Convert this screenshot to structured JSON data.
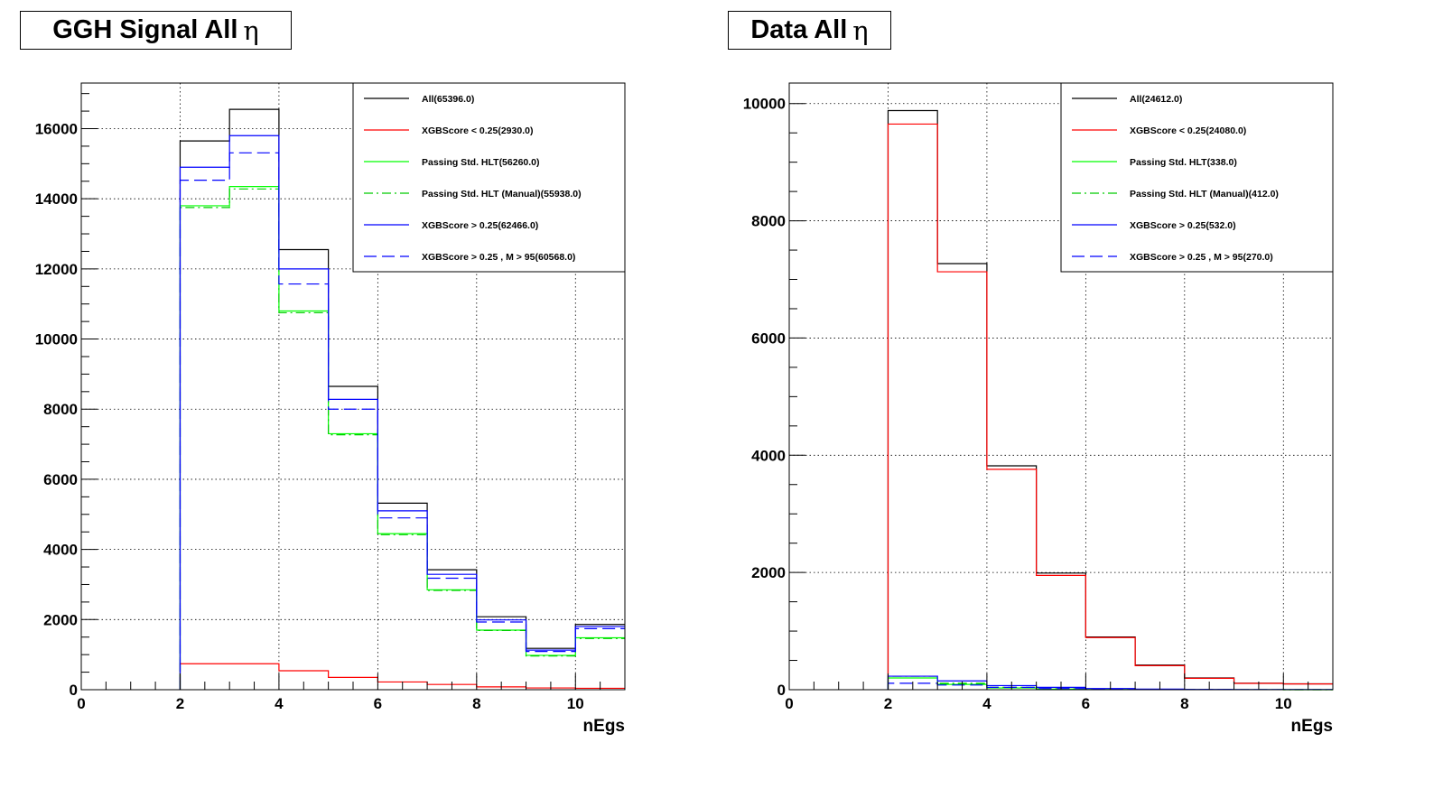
{
  "chart_data": [
    {
      "type": "histogram",
      "title": "GGH Signal All",
      "title_symbol": "η",
      "xlabel": "nEgs",
      "ylabel": "",
      "xlim": [
        0,
        11
      ],
      "ylim": [
        0,
        17300
      ],
      "xticks": [
        0,
        2,
        4,
        6,
        8,
        10
      ],
      "yticks": [
        0,
        2000,
        4000,
        6000,
        8000,
        10000,
        12000,
        14000,
        16000
      ],
      "grid": true,
      "legend_position": "top-right",
      "bin_edges": [
        2,
        3,
        4,
        5,
        6,
        7,
        8,
        9,
        10,
        11
      ],
      "series": [
        {
          "name": "All(65396.0)",
          "color": "#000000",
          "style": "solid",
          "values": [
            15650,
            16550,
            12550,
            8650,
            5320,
            3420,
            2080,
            1180,
            1860
          ]
        },
        {
          "name": "XGBScore < 0.25(2930.0)",
          "color": "#ff0000",
          "style": "solid",
          "values": [
            740,
            740,
            540,
            350,
            220,
            150,
            80,
            50,
            40
          ]
        },
        {
          "name": "Passing Std. HLT(56260.0)",
          "color": "#00ff00",
          "style": "solid",
          "values": [
            13800,
            14350,
            10800,
            7300,
            4450,
            2850,
            1700,
            980,
            1480
          ]
        },
        {
          "name": "Passing Std. HLT (Manual)(55938.0)",
          "color": "#00cc00",
          "style": "dashdot",
          "values": [
            13750,
            14280,
            10750,
            7270,
            4420,
            2830,
            1690,
            960,
            1460
          ]
        },
        {
          "name": "XGBScore > 0.25(62466.0)",
          "color": "#0000ff",
          "style": "solid",
          "values": [
            14900,
            15800,
            12000,
            8280,
            5100,
            3290,
            1990,
            1130,
            1800
          ]
        },
        {
          "name": "XGBScore > 0.25 , M > 95(60568.0)",
          "color": "#0000ff",
          "style": "dashed",
          "values": [
            14530,
            15310,
            11570,
            8000,
            4900,
            3180,
            1930,
            1090,
            1740
          ]
        }
      ]
    },
    {
      "type": "histogram",
      "title": "Data All",
      "title_symbol": "η",
      "xlabel": "nEgs",
      "ylabel": "",
      "xlim": [
        0,
        11
      ],
      "ylim": [
        0,
        10350
      ],
      "xticks": [
        0,
        2,
        4,
        6,
        8,
        10
      ],
      "yticks": [
        0,
        2000,
        4000,
        6000,
        8000,
        10000
      ],
      "grid": true,
      "legend_position": "top-right",
      "bin_edges": [
        2,
        3,
        4,
        5,
        6,
        7,
        8,
        9,
        10,
        11
      ],
      "series": [
        {
          "name": "All(24612.0)",
          "color": "#000000",
          "style": "solid",
          "values": [
            9880,
            7270,
            3820,
            1990,
            900,
            420,
            200,
            110,
            100
          ]
        },
        {
          "name": "XGBScore < 0.25(24080.0)",
          "color": "#ff0000",
          "style": "solid",
          "values": [
            9650,
            7130,
            3760,
            1950,
            890,
            410,
            195,
            108,
            98
          ]
        },
        {
          "name": "Passing Std. HLT(338.0)",
          "color": "#00ff00",
          "style": "solid",
          "values": [
            200,
            90,
            30,
            10,
            4,
            2,
            1,
            1,
            0
          ]
        },
        {
          "name": "Passing Std. HLT (Manual)(412.0)",
          "color": "#00cc00",
          "style": "dashdot",
          "values": [
            230,
            110,
            40,
            15,
            6,
            3,
            2,
            1,
            0
          ]
        },
        {
          "name": "XGBScore > 0.25(532.0)",
          "color": "#0000ff",
          "style": "solid",
          "values": [
            230,
            150,
            70,
            40,
            20,
            10,
            5,
            3,
            2
          ]
        },
        {
          "name": "XGBScore > 0.25 , M > 95(270.0)",
          "color": "#0000ff",
          "style": "dashed",
          "values": [
            110,
            80,
            40,
            20,
            10,
            5,
            3,
            1,
            1
          ]
        }
      ]
    }
  ]
}
